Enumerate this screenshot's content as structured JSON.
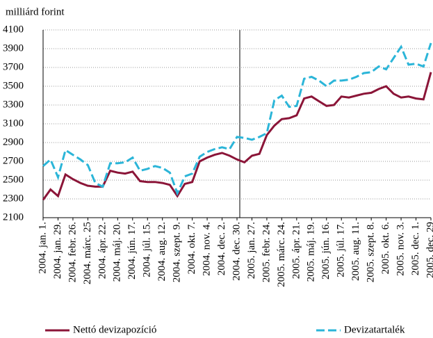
{
  "chart_data": {
    "type": "line",
    "y_label": "milliárd forint",
    "categories": [
      "2004. jan. 1.",
      null,
      "2004. jan. 29.",
      null,
      "2004. febr. 26.",
      null,
      "2004. márc. 25",
      null,
      "2004. ápr. 22.",
      null,
      "2004. máj. 20.",
      null,
      "2004. jún. 17.",
      null,
      "2004. júl. 15.",
      null,
      "2004. aug. 12.",
      null,
      "2004. szept. 9.",
      null,
      "2004. okt. 7.",
      null,
      "2004. nov. 4.",
      null,
      "2004. dec. 2.",
      null,
      "2004. dec. 30.",
      null,
      "2005. jan. 27.",
      null,
      "2005. febr. 24.",
      null,
      "2005. márc. 24.",
      null,
      "2005. ápr. 21.",
      null,
      "2005. máj. 19.",
      null,
      "2005. jún. 16.",
      null,
      "2005. júl. 17.",
      null,
      "2005. aug. 11.",
      null,
      "2005. szept. 8.",
      null,
      "2005. okt. 6.",
      null,
      "2005. nov. 3.",
      null,
      "2005. dec. 1.",
      null,
      "2005. dec. 29"
    ],
    "series": [
      {
        "name": "Nettó devizapozíció",
        "color": "#8b1538",
        "dashed": false,
        "values": [
          2290,
          2400,
          2330,
          2560,
          2510,
          2470,
          2440,
          2430,
          2430,
          2600,
          2580,
          2570,
          2590,
          2490,
          2480,
          2480,
          2470,
          2450,
          2330,
          2460,
          2480,
          2700,
          2740,
          2770,
          2790,
          2760,
          2720,
          2690,
          2760,
          2780,
          2980,
          3080,
          3150,
          3160,
          3190,
          3370,
          3390,
          3340,
          3290,
          3300,
          3390,
          3380,
          3400,
          3420,
          3430,
          3470,
          3500,
          3420,
          3380,
          3390,
          3370,
          3360,
          3650
        ]
      },
      {
        "name": "Devizatartalék",
        "color": "#2bb5d8",
        "dashed": true,
        "values": [
          2650,
          2720,
          2530,
          2820,
          2770,
          2720,
          2660,
          2470,
          2430,
          2680,
          2680,
          2690,
          2740,
          2600,
          2620,
          2650,
          2630,
          2580,
          2360,
          2540,
          2570,
          2750,
          2800,
          2830,
          2850,
          2830,
          2960,
          2950,
          2930,
          2960,
          3000,
          3350,
          3400,
          3280,
          3290,
          3580,
          3600,
          3560,
          3500,
          3560,
          3560,
          3570,
          3600,
          3640,
          3650,
          3710,
          3680,
          3800,
          3920,
          3730,
          3740,
          3710,
          3960
        ]
      }
    ],
    "ylim": [
      2100,
      4100
    ],
    "yticks": [
      2100,
      2300,
      2500,
      2700,
      2900,
      3100,
      3300,
      3500,
      3700,
      3900,
      4100
    ],
    "grid": true
  }
}
